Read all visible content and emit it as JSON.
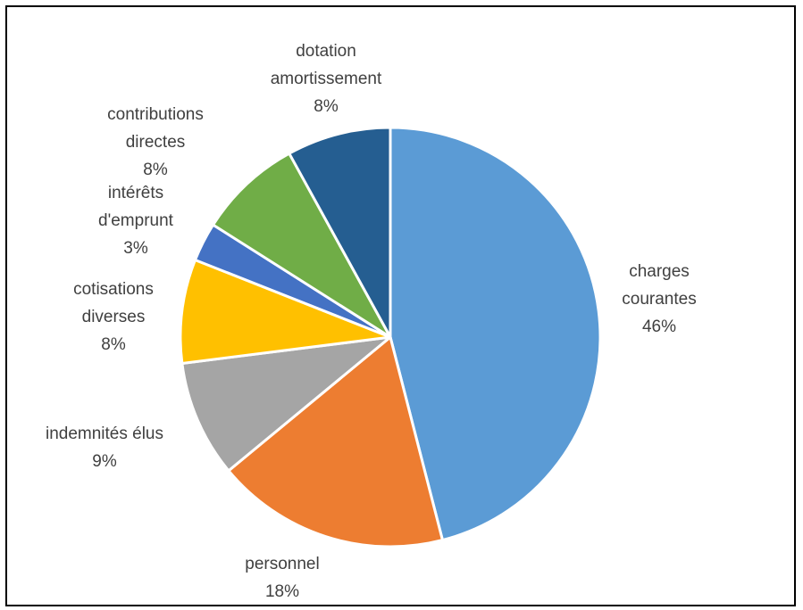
{
  "chart_data": {
    "type": "pie",
    "title": "",
    "legend": "none",
    "slices": [
      {
        "name": "charges courantes",
        "label_lines": [
          "charges",
          "courantes",
          "46%"
        ],
        "value": 46,
        "color": "#5B9BD5"
      },
      {
        "name": "personnel",
        "label_lines": [
          "personnel",
          "18%"
        ],
        "value": 18,
        "color": "#ED7D31"
      },
      {
        "name": "indemnités élus",
        "label_lines": [
          "indemnités élus",
          "9%"
        ],
        "value": 9,
        "color": "#A5A5A5"
      },
      {
        "name": "cotisations diverses",
        "label_lines": [
          "cotisations",
          "diverses",
          "8%"
        ],
        "value": 8,
        "color": "#FFC000"
      },
      {
        "name": "intérêts d'emprunt",
        "label_lines": [
          "intérêts",
          "d'emprunt",
          "3%"
        ],
        "value": 3,
        "color": "#4472C4"
      },
      {
        "name": "contributions directes",
        "label_lines": [
          "contributions",
          "directes",
          "8%"
        ],
        "value": 8,
        "color": "#70AD47"
      },
      {
        "name": "dotation amortissement",
        "label_lines": [
          "dotation",
          "amortissement",
          "8%"
        ],
        "value": 8,
        "color": "#255E91"
      }
    ]
  }
}
